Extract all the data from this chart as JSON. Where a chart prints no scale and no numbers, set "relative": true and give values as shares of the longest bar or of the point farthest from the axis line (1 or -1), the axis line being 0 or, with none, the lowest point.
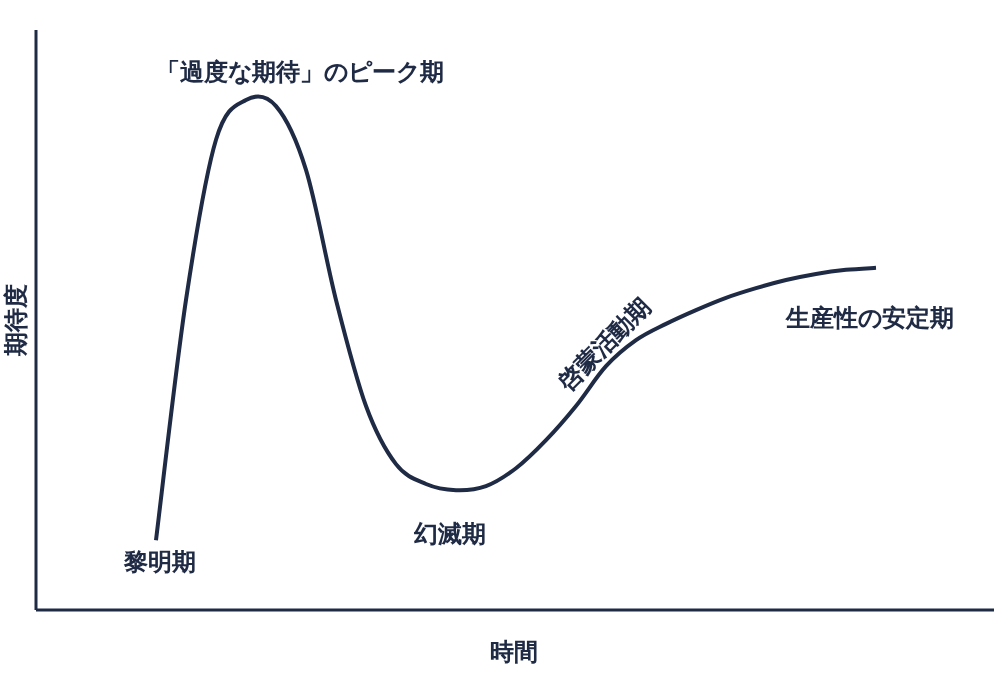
{
  "chart_data": {
    "type": "line",
    "relative": true,
    "xlabel": "時間",
    "ylabel": "期待度",
    "categories": [
      null,
      null,
      null,
      null,
      null,
      null,
      null,
      null,
      null,
      null,
      null,
      null,
      null,
      null,
      null,
      null,
      null,
      null,
      null,
      null,
      null,
      null,
      null,
      null,
      null
    ],
    "series": [
      {
        "color": "#1f2a44",
        "values": [
          0.137,
          0.608,
          0.922,
          1,
          0.988,
          0.863,
          0.608,
          0.4,
          0.286,
          0.247,
          0.235,
          0.243,
          0.278,
          0.333,
          0.4,
          0.478,
          0.529,
          0.561,
          0.588,
          0.612,
          0.631,
          0.647,
          0.659,
          0.667,
          0.671
        ]
      }
    ],
    "annotations": [
      "「過度な期待」のピーク期",
      "黎明期",
      "幻滅期",
      "啓蒙活動期",
      "生産性の安定期"
    ]
  }
}
